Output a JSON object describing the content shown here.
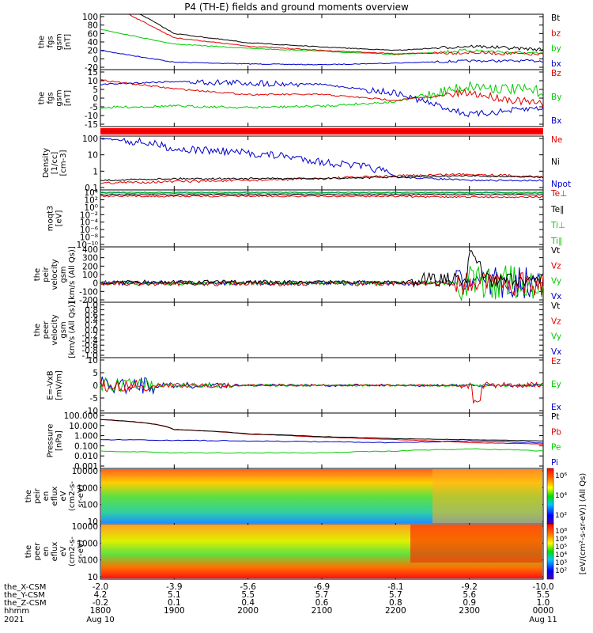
{
  "title": "P4 (TH-E) fields and ground moments overview",
  "colors": {
    "black": "#000000",
    "red": "#e00000",
    "green": "#00cc00",
    "blue": "#0000cc"
  },
  "panels": [
    {
      "id": "fgs",
      "ylabel": [
        "the",
        "fgs",
        "gsm",
        "[nT]"
      ],
      "yticks": [
        "100",
        "80",
        "60",
        "40",
        "20",
        "0",
        "-20"
      ],
      "legend": [
        {
          "text": "Bt",
          "color": "#000000"
        },
        {
          "text": "bz",
          "color": "#e00000"
        },
        {
          "text": "by",
          "color": "#00cc00"
        },
        {
          "text": "bx",
          "color": "#0000cc"
        }
      ]
    },
    {
      "id": "fgs2",
      "ylabel": [
        "the",
        "fgs",
        "gsm",
        "[nT]"
      ],
      "yticks": [
        "15",
        "10",
        "5",
        "0",
        "-5",
        "-10",
        "-15"
      ],
      "legend": [
        {
          "text": "Bz",
          "color": "#e00000"
        },
        {
          "text": "By",
          "color": "#00cc00"
        },
        {
          "text": "Bx",
          "color": "#0000cc"
        }
      ]
    },
    {
      "id": "density",
      "ylabel": [
        "Density",
        "[1/cc]",
        "[cm-3]"
      ],
      "yticks": [
        "100",
        "10",
        "1",
        "0.1"
      ],
      "legend": [
        {
          "text": "Ne",
          "color": "#e00000"
        },
        {
          "text": "Ni",
          "color": "#000000"
        },
        {
          "text": "Npot",
          "color": "#0000cc"
        }
      ]
    },
    {
      "id": "temp",
      "ylabel": [
        "moqt3",
        "[eV]"
      ],
      "yticks": [
        "10⁴",
        "10²",
        "10⁰",
        "10⁻²",
        "10⁻⁴",
        "10⁻⁶",
        "10⁻⁸",
        "10⁻¹⁰"
      ],
      "legend": [
        {
          "text": "Te⊥",
          "color": "#e00000"
        },
        {
          "text": "Te∥",
          "color": "#000000"
        },
        {
          "text": "Ti⊥",
          "color": "#00cc00"
        },
        {
          "text": "Ti∥",
          "color": "#00cc00"
        }
      ]
    },
    {
      "id": "vpeir",
      "ylabel": [
        "the",
        "peir",
        "velocity",
        "gsm",
        "[km/s (All Qs)]"
      ],
      "yticks": [
        "400",
        "300",
        "200",
        "100",
        "0",
        "-100",
        "-200"
      ],
      "legend": [
        {
          "text": "Vt",
          "color": "#000000"
        },
        {
          "text": "Vz",
          "color": "#e00000"
        },
        {
          "text": "Vy",
          "color": "#00cc00"
        },
        {
          "text": "Vx",
          "color": "#0000cc"
        }
      ]
    },
    {
      "id": "vpeer",
      "ylabel": [
        "the",
        "peer",
        "velocity",
        "gsm",
        "[km/s (All Qs)]"
      ],
      "yticks": [
        "1.0",
        "0.8",
        "0.6",
        "0.4",
        "0.2",
        "0.0",
        "-0.2",
        "-0.4",
        "-0.6",
        "-0.8",
        "-1.0"
      ],
      "legend": [
        {
          "text": "Vt",
          "color": "#000000"
        },
        {
          "text": "Vz",
          "color": "#e00000"
        },
        {
          "text": "Vy",
          "color": "#00cc00"
        },
        {
          "text": "Vx",
          "color": "#0000cc"
        }
      ]
    },
    {
      "id": "efield",
      "ylabel": [
        "E=-VxB",
        "[mV/m]"
      ],
      "yticks": [
        "10",
        "5",
        "0",
        "-5",
        "-10"
      ],
      "legend": [
        {
          "text": "Ez",
          "color": "#e00000"
        },
        {
          "text": "Ey",
          "color": "#00cc00"
        },
        {
          "text": "Ex",
          "color": "#0000cc"
        }
      ]
    },
    {
      "id": "pressure",
      "ylabel": [
        "Pressure",
        "[nPa]"
      ],
      "yticks": [
        "100.000",
        "10.000",
        "1.000",
        "0.100",
        "0.010",
        "0.001"
      ],
      "legend": [
        {
          "text": "Pt",
          "color": "#000000"
        },
        {
          "text": "Pb",
          "color": "#e00000"
        },
        {
          "text": "Pe",
          "color": "#00cc00"
        },
        {
          "text": "Pi",
          "color": "#0000cc"
        }
      ]
    },
    {
      "id": "peir_flux",
      "ylabel": [
        "the",
        "peir",
        "en",
        "eflux",
        "eV",
        "(cm2-s-",
        "sr-eV)"
      ],
      "yticks": [
        "10000",
        "1000",
        "100",
        "10"
      ],
      "legend": []
    },
    {
      "id": "peer_flux",
      "ylabel": [
        "the",
        "peer",
        "en",
        "eflux",
        "eV",
        "(cm2-s-",
        "sr-eV)"
      ],
      "yticks": [
        "10000",
        "1000",
        "100",
        "10"
      ],
      "legend": []
    }
  ],
  "colorbar": {
    "label": "[eV/(cm²-s-sr-eV)] (All Qs)",
    "ticks": [
      "10⁶",
      "10⁴",
      "10²"
    ],
    "ticks2": [
      "10⁸",
      "10⁶",
      "10⁵",
      "10⁴",
      "10³",
      "10²"
    ]
  },
  "xaxis": {
    "rows": [
      {
        "name": "the_X-CSM",
        "values": [
          "-2.0",
          "-3.9",
          "-5.6",
          "-6.9",
          "-8.1",
          "-9.2",
          "-10.0"
        ]
      },
      {
        "name": "the_Y-CSM",
        "values": [
          "4.2",
          "5.1",
          "5.5",
          "5.7",
          "5.7",
          "5.6",
          "5.5"
        ]
      },
      {
        "name": "the_Z-CSM",
        "values": [
          "-0.2",
          "0.1",
          "0.4",
          "0.6",
          "0.8",
          "0.9",
          "1.0"
        ]
      },
      {
        "name": "hhmm",
        "values": [
          "1800",
          "1900",
          "2000",
          "2100",
          "2200",
          "2300",
          "0000"
        ]
      }
    ],
    "year": "2021",
    "start_date": "Aug 10",
    "end_date": "Aug 11"
  },
  "chart_data": [
    {
      "type": "line",
      "title": "P4 (TH-E) fields and ground moments overview",
      "ylabel": "the fgs gsm [nT]",
      "ylim": [
        -20,
        100
      ],
      "x": [
        "1800",
        "1900",
        "2000",
        "2100",
        "2200",
        "2300",
        "0000"
      ],
      "series": [
        {
          "name": "Bt",
          "values": [
            160,
            60,
            38,
            28,
            20,
            30,
            22
          ]
        },
        {
          "name": "bz",
          "values": [
            140,
            50,
            30,
            20,
            12,
            15,
            10
          ]
        },
        {
          "name": "by",
          "values": [
            70,
            35,
            25,
            18,
            10,
            20,
            12
          ]
        },
        {
          "name": "bx",
          "values": [
            20,
            -8,
            -12,
            -14,
            -10,
            -5,
            -5
          ]
        }
      ]
    },
    {
      "type": "line",
      "ylabel": "the fgs gsm [nT]",
      "ylim": [
        -18,
        17
      ],
      "x": [
        "1800",
        "1900",
        "2000",
        "2100",
        "2200",
        "2300",
        "0000"
      ],
      "series": [
        {
          "name": "Bz",
          "values": [
            12,
            6,
            2,
            2,
            -2,
            3,
            -5
          ]
        },
        {
          "name": "By",
          "values": [
            -7,
            -6,
            -7,
            -6,
            -3,
            8,
            4
          ]
        },
        {
          "name": "Bx",
          "values": [
            9,
            11,
            10,
            9,
            3,
            -12,
            -7
          ]
        }
      ]
    },
    {
      "type": "line",
      "ylabel": "Density [1/cc]",
      "ylim": [
        0.1,
        200
      ],
      "x": [
        "1800",
        "1900",
        "2000",
        "2100",
        "2200",
        "2300",
        "0000"
      ],
      "series": [
        {
          "name": "Ne",
          "values": [
            0.2,
            0.25,
            0.3,
            0.4,
            0.6,
            0.8,
            0.5
          ]
        },
        {
          "name": "Ni",
          "values": [
            0.3,
            0.4,
            0.4,
            0.4,
            0.5,
            0.6,
            0.5
          ]
        },
        {
          "name": "Npot",
          "values": [
            200,
            40,
            20,
            5,
            0.5,
            0.3,
            0.3
          ]
        }
      ]
    },
    {
      "type": "line",
      "ylabel": "the peir velocity gsm [km/s (All Qs)]",
      "ylim": [
        -200,
        400
      ],
      "x": [
        "1800",
        "1900",
        "2000",
        "2100",
        "2200",
        "2300",
        "0000"
      ],
      "series": [
        {
          "name": "Vt",
          "values": [
            10,
            10,
            10,
            15,
            30,
            300,
            50
          ]
        },
        {
          "name": "Vz",
          "values": [
            0,
            0,
            0,
            0,
            0,
            -50,
            0
          ]
        },
        {
          "name": "Vy",
          "values": [
            0,
            0,
            0,
            0,
            0,
            50,
            0
          ]
        },
        {
          "name": "Vx",
          "values": [
            0,
            0,
            0,
            0,
            0,
            0,
            0
          ]
        }
      ]
    },
    {
      "type": "line",
      "ylabel": "E=-VxB [mV/m]",
      "ylim": [
        -10,
        10
      ],
      "x": [
        "1800",
        "1900",
        "2000",
        "2100",
        "2200",
        "2300",
        "0000"
      ],
      "series": [
        {
          "name": "Ez",
          "values": [
            0,
            0,
            0,
            0,
            0,
            -6,
            0
          ]
        },
        {
          "name": "Ey",
          "values": [
            0,
            0,
            0,
            0,
            0,
            -2,
            0
          ]
        },
        {
          "name": "Ex",
          "values": [
            0,
            0,
            0,
            0,
            0,
            0,
            0
          ]
        }
      ]
    },
    {
      "type": "line",
      "ylabel": "Pressure [nPa]",
      "ylim": [
        0.001,
        100
      ],
      "x": [
        "1800",
        "1900",
        "2000",
        "2100",
        "2200",
        "2300",
        "0000"
      ],
      "series": [
        {
          "name": "Pt",
          "values": [
            40,
            4,
            1.5,
            0.8,
            0.5,
            0.4,
            0.3
          ]
        },
        {
          "name": "Pb",
          "values": [
            38,
            4,
            1.4,
            0.7,
            0.4,
            0.2,
            0.15
          ]
        },
        {
          "name": "Pe",
          "values": [
            0.03,
            0.02,
            0.02,
            0.02,
            0.03,
            0.05,
            0.03
          ]
        },
        {
          "name": "Pi",
          "values": [
            0.4,
            0.35,
            0.3,
            0.25,
            0.2,
            0.3,
            0.2
          ]
        }
      ]
    },
    {
      "type": "heatmap",
      "ylabel": "the peir en eflux eV (cm2-s-sr-eV)",
      "ylim": [
        5,
        30000
      ]
    },
    {
      "type": "heatmap",
      "ylabel": "the peer en eflux eV (cm2-s-sr-eV)",
      "ylim": [
        5,
        30000
      ]
    }
  ]
}
